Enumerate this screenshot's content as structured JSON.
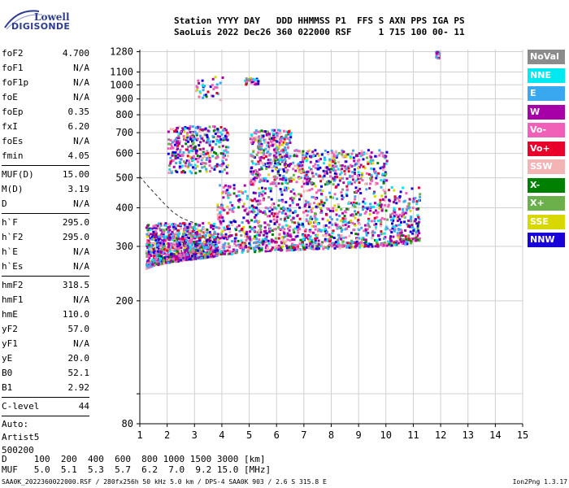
{
  "logo": {
    "line1": "Lowell",
    "line2": "DIGISONDE"
  },
  "header": {
    "line1": "Station YYYY DAY   DDD HHMMSS P1  FFS S AXN PPS IGA PS",
    "line2": "SaoLuis 2022 Dec26 360 022000 RSF     1 715 100 00- 11"
  },
  "params": [
    {
      "name": "foF2",
      "value": "4.700"
    },
    {
      "name": "foF1",
      "value": "N/A"
    },
    {
      "name": "foF1p",
      "value": "N/A"
    },
    {
      "name": "foE",
      "value": "N/A"
    },
    {
      "name": "foEp",
      "value": "0.35"
    },
    {
      "name": "fxI",
      "value": "6.20"
    },
    {
      "name": "foEs",
      "value": "N/A"
    },
    {
      "name": "fmin",
      "value": "4.05"
    },
    {
      "sep": true
    },
    {
      "name": "MUF(D)",
      "value": "15.00"
    },
    {
      "name": "M(D)",
      "value": "3.19"
    },
    {
      "name": "D",
      "value": "N/A"
    },
    {
      "sep": true
    },
    {
      "name": "h`F",
      "value": "295.0"
    },
    {
      "name": "h`F2",
      "value": "295.0"
    },
    {
      "name": "h`E",
      "value": "N/A"
    },
    {
      "name": "h`Es",
      "value": "N/A"
    },
    {
      "sep": true
    },
    {
      "name": "hmF2",
      "value": "318.5"
    },
    {
      "name": "hmF1",
      "value": "N/A"
    },
    {
      "name": "hmE",
      "value": "110.0"
    },
    {
      "name": "yF2",
      "value": "57.0"
    },
    {
      "name": "yF1",
      "value": "N/A"
    },
    {
      "name": "yE",
      "value": "20.0"
    },
    {
      "name": "B0",
      "value": "52.1"
    },
    {
      "name": "B1",
      "value": "2.92"
    },
    {
      "sep": true
    },
    {
      "name": "C-level",
      "value": "44"
    },
    {
      "sep": true
    }
  ],
  "auto": [
    "Auto:",
    "Artist5",
    "500200"
  ],
  "legend": [
    {
      "label": "NoVal",
      "color": "#8c8c8c"
    },
    {
      "label": "NNE",
      "color": "#00e8f0"
    },
    {
      "label": "E",
      "color": "#3aa8f0"
    },
    {
      "label": "W",
      "color": "#a800a8"
    },
    {
      "label": "Vo-",
      "color": "#f060b8"
    },
    {
      "label": "Vo+",
      "color": "#e8002a"
    },
    {
      "label": "SSW",
      "color": "#f4b4b4"
    },
    {
      "label": "X-",
      "color": "#008000"
    },
    {
      "label": "X+",
      "color": "#6cb04c"
    },
    {
      "label": "SSE",
      "color": "#d8d800"
    },
    {
      "label": "NNW",
      "color": "#1800d8"
    }
  ],
  "footer": {
    "line1": "D     100  200  400  600  800 1000 1500 3000 [km]",
    "line2": "MUF   5.0  5.1  5.3  5.7  6.2  7.0  9.2 15.0 [MHz]"
  },
  "bottom": {
    "left": "SAA0K_2022360022000.RSF / 280fx256h 50 kHz 5.0 km / DPS-4 SAA0K 903 / 2.6 S 315.8 E",
    "right": "Ion2Png 1.3.17"
  },
  "chart_data": {
    "type": "scatter",
    "title": "",
    "xlabel": "",
    "ylabel": "",
    "xlim": [
      1,
      15
    ],
    "ylim": [
      80,
      1300
    ],
    "y_scale": "log",
    "x_ticks": [
      1,
      2,
      3,
      4,
      5,
      6,
      7,
      8,
      9,
      10,
      11,
      12,
      13,
      14,
      15
    ],
    "y_ticks": [
      80,
      100,
      200,
      300,
      400,
      500,
      600,
      700,
      800,
      900,
      1000,
      1100,
      1280
    ],
    "y_tick_labels": [
      "80",
      "",
      "200",
      "300",
      "400",
      "500",
      "600",
      "700",
      "800",
      "900",
      "1000",
      "1100",
      "1280"
    ],
    "grid": true,
    "legend_position": "right",
    "profile_curve": [
      [
        1.0,
        505
      ],
      [
        1.3,
        470
      ],
      [
        1.6,
        440
      ],
      [
        1.9,
        412
      ],
      [
        2.2,
        388
      ],
      [
        2.5,
        372
      ],
      [
        2.8,
        362
      ],
      [
        3.0,
        358
      ]
    ],
    "trace_lower_edge": [
      [
        1.0,
        252
      ],
      [
        1.5,
        262
      ],
      [
        2.0,
        268
      ],
      [
        3.0,
        275
      ],
      [
        4.0,
        283
      ],
      [
        5.0,
        290
      ],
      [
        6.0,
        292
      ],
      [
        7.0,
        295
      ],
      [
        8.0,
        298
      ],
      [
        9.0,
        300
      ],
      [
        10.0,
        303
      ],
      [
        11.0,
        310
      ]
    ],
    "echo_regions": [
      {
        "x": [
          1.2,
          3.8
        ],
        "y": [
          252,
          360
        ],
        "density": "high"
      },
      {
        "x": [
          3.8,
          11.2
        ],
        "y": [
          285,
          480
        ],
        "density": "high"
      },
      {
        "x": [
          5.0,
          6.5
        ],
        "y": [
          480,
          720
        ],
        "density": "medium"
      },
      {
        "x": [
          6.5,
          10.0
        ],
        "y": [
          480,
          620
        ],
        "density": "medium"
      },
      {
        "x": [
          2.0,
          4.2
        ],
        "y": [
          520,
          740
        ],
        "density": "medium"
      },
      {
        "x": [
          3.0,
          4.0
        ],
        "y": [
          900,
          1070
        ],
        "density": "sparse"
      },
      {
        "x": [
          4.8,
          5.3
        ],
        "y": [
          1010,
          1060
        ],
        "density": "sparse"
      },
      {
        "x": [
          11.8,
          11.9
        ],
        "y": [
          1230,
          1290
        ],
        "density": "sparse"
      }
    ]
  }
}
